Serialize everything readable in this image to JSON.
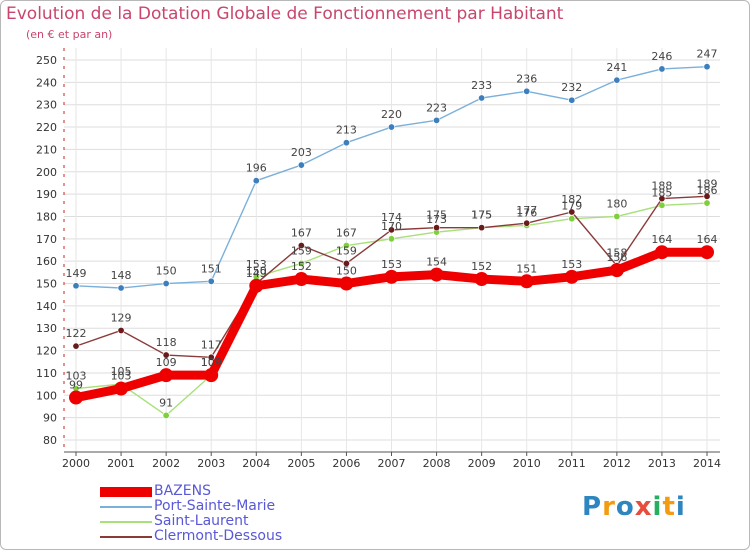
{
  "title": "Evolution de la Dotation Globale de Fonctionnement par Habitant",
  "subtitle": "(en € et par an)",
  "logo": {
    "letters": [
      "P",
      "r",
      "o",
      "x",
      "i",
      "t",
      "i"
    ],
    "colors": [
      "#2e86c1",
      "#f39c12",
      "#2e86c1",
      "#e74c3c",
      "#27ae60",
      "#f39c12",
      "#2e86c1"
    ]
  },
  "chart_data": {
    "type": "line",
    "title": "Evolution de la Dotation Globale de Fonctionnement par Habitant",
    "subtitle": "(en € et par an)",
    "xlabel": "",
    "ylabel": "",
    "x": [
      "2000",
      "2001",
      "2002",
      "2003",
      "2004",
      "2005",
      "2006",
      "2007",
      "2008",
      "2009",
      "2010",
      "2011",
      "2012",
      "2013",
      "2014"
    ],
    "ylim": [
      80,
      250
    ],
    "yticks": [
      80,
      90,
      100,
      110,
      120,
      130,
      140,
      150,
      160,
      170,
      180,
      190,
      200,
      210,
      220,
      230,
      240,
      250
    ],
    "grid": true,
    "legend_position": "bottom-left",
    "series": [
      {
        "name": "Port-Sainte-Marie",
        "color": "#7ab0da",
        "marker": "#3d7fbd",
        "values": [
          149,
          148,
          150,
          151,
          196,
          203,
          213,
          220,
          223,
          233,
          236,
          232,
          241,
          246,
          247
        ]
      },
      {
        "name": "Saint-Laurent",
        "color": "#a8e07a",
        "marker": "#7dcf3c",
        "values": [
          103,
          105,
          91,
          109,
          153,
          159,
          167,
          170,
          173,
          175,
          176,
          179,
          180,
          185,
          186
        ]
      },
      {
        "name": "Clermont-Dessous",
        "color": "#8b3a3a",
        "marker": "#6b1a1a",
        "values": [
          122,
          129,
          118,
          117,
          150,
          167,
          159,
          174,
          175,
          175,
          177,
          182,
          158,
          188,
          189
        ]
      },
      {
        "name": "BAZENS",
        "color": "#ee0000",
        "marker": "#ee0000",
        "values": [
          99,
          103,
          109,
          109,
          149,
          152,
          150,
          153,
          154,
          152,
          151,
          153,
          156,
          164,
          164
        ]
      }
    ],
    "legend_order": [
      "BAZENS",
      "Port-Sainte-Marie",
      "Saint-Laurent",
      "Clermont-Dessous"
    ]
  }
}
